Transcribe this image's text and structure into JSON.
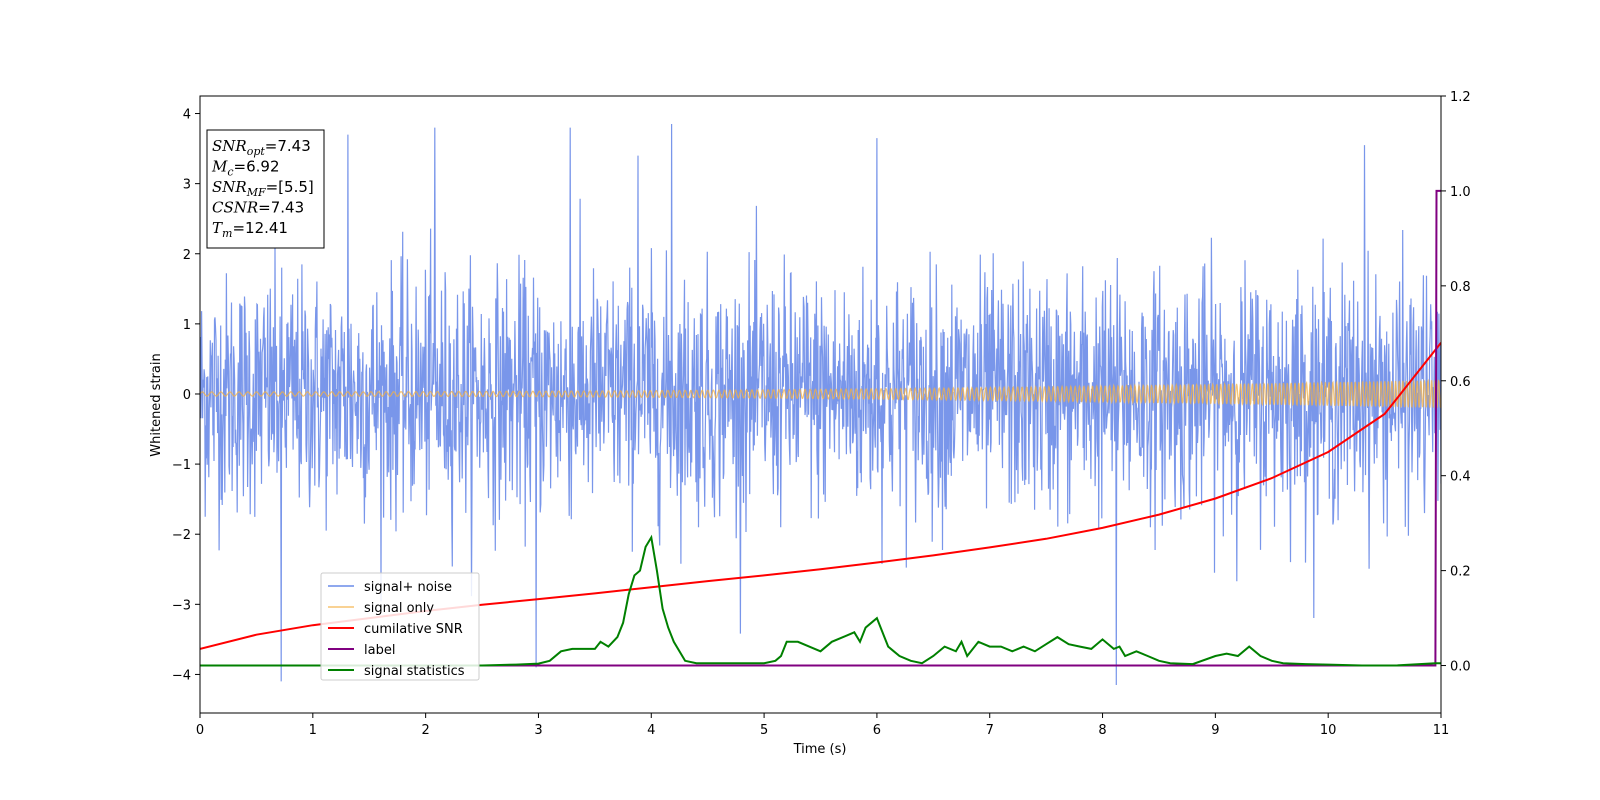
{
  "chart_data": {
    "type": "line",
    "xlabel": "Time (s)",
    "ylabel": "Whitened strain",
    "xlim": [
      0,
      11
    ],
    "ylim_left": [
      -4.55,
      4.25
    ],
    "ylim_right": [
      -0.1,
      1.2
    ],
    "x_ticks": [
      0,
      1,
      2,
      3,
      4,
      5,
      6,
      7,
      8,
      9,
      10,
      11
    ],
    "y_ticks_left": [
      -4,
      -3,
      -2,
      -1,
      0,
      1,
      2,
      3,
      4
    ],
    "y_ticks_right": [
      0.0,
      0.2,
      0.4,
      0.6,
      0.8,
      1.0,
      1.2
    ],
    "y_tick_labels_left": [
      "−4",
      "−3",
      "−2",
      "−1",
      "0",
      "1",
      "2",
      "3",
      "4"
    ],
    "y_tick_labels_right": [
      "0.0",
      "0.2",
      "0.4",
      "0.6",
      "0.8",
      "1.0",
      "1.2"
    ],
    "legend_position": "lower-left",
    "series": [
      {
        "name": "signal+ noise",
        "axis": "left",
        "color": "#6a8be8",
        "description_kind": "noise",
        "noise_std": 0.85,
        "peaks": [
          {
            "x": 0.72,
            "y": -4.1
          },
          {
            "x": 1.31,
            "y": 3.7
          },
          {
            "x": 2.08,
            "y": 3.8
          },
          {
            "x": 2.98,
            "y": -3.9
          },
          {
            "x": 3.28,
            "y": 3.8
          },
          {
            "x": 3.88,
            "y": 3.4
          },
          {
            "x": 4.18,
            "y": 3.85
          },
          {
            "x": 6.0,
            "y": 3.65
          },
          {
            "x": 8.12,
            "y": -4.15
          },
          {
            "x": 10.32,
            "y": 3.55
          }
        ]
      },
      {
        "name": "signal only",
        "axis": "left",
        "color": "#f5b041",
        "description_kind": "chirp",
        "amplitude_start": 0.03,
        "amplitude_end": 0.2
      },
      {
        "name": "cumilative SNR",
        "axis": "right",
        "color": "#ff0000",
        "x": [
          0,
          0.5,
          1,
          1.5,
          2,
          2.5,
          3,
          3.5,
          4,
          4.5,
          5,
          5.5,
          6,
          6.5,
          7,
          7.5,
          8,
          8.5,
          9,
          9.5,
          10,
          10.5,
          11
        ],
        "y": [
          0.035,
          0.065,
          0.085,
          0.1,
          0.115,
          0.128,
          0.14,
          0.152,
          0.165,
          0.178,
          0.19,
          0.203,
          0.217,
          0.232,
          0.249,
          0.267,
          0.29,
          0.318,
          0.352,
          0.395,
          0.45,
          0.53,
          0.68
        ]
      },
      {
        "name": "label",
        "axis": "right",
        "color": "#800080",
        "x": [
          0,
          10.95,
          10.96,
          11.0
        ],
        "y": [
          0,
          0,
          1.0,
          1.0
        ]
      },
      {
        "name": "signal statistics",
        "axis": "right",
        "color": "#008000",
        "x": [
          0,
          0.5,
          1,
          1.5,
          2,
          2.5,
          2.8,
          3.0,
          3.1,
          3.2,
          3.3,
          3.4,
          3.5,
          3.55,
          3.62,
          3.7,
          3.75,
          3.8,
          3.85,
          3.9,
          3.95,
          4.0,
          4.05,
          4.1,
          4.15,
          4.2,
          4.3,
          4.4,
          4.6,
          5.0,
          5.1,
          5.15,
          5.2,
          5.3,
          5.4,
          5.5,
          5.6,
          5.7,
          5.8,
          5.85,
          5.9,
          5.95,
          6.0,
          6.05,
          6.1,
          6.15,
          6.2,
          6.3,
          6.4,
          6.5,
          6.6,
          6.7,
          6.75,
          6.8,
          6.9,
          7.0,
          7.1,
          7.2,
          7.3,
          7.4,
          7.5,
          7.6,
          7.7,
          7.8,
          7.9,
          8.0,
          8.1,
          8.15,
          8.2,
          8.3,
          8.4,
          8.5,
          8.6,
          8.8,
          9.0,
          9.1,
          9.2,
          9.3,
          9.4,
          9.5,
          9.6,
          9.8,
          10.0,
          10.3,
          10.6,
          10.95,
          11.0
        ],
        "y": [
          0.0,
          0.0,
          0.0,
          0.0,
          0.0,
          0.0,
          0.002,
          0.004,
          0.01,
          0.03,
          0.035,
          0.035,
          0.035,
          0.05,
          0.04,
          0.06,
          0.09,
          0.15,
          0.19,
          0.2,
          0.25,
          0.27,
          0.2,
          0.12,
          0.08,
          0.05,
          0.01,
          0.005,
          0.005,
          0.005,
          0.01,
          0.02,
          0.05,
          0.05,
          0.04,
          0.03,
          0.05,
          0.06,
          0.07,
          0.05,
          0.08,
          0.09,
          0.1,
          0.07,
          0.04,
          0.03,
          0.02,
          0.01,
          0.005,
          0.02,
          0.04,
          0.03,
          0.05,
          0.02,
          0.05,
          0.04,
          0.04,
          0.03,
          0.04,
          0.03,
          0.045,
          0.06,
          0.045,
          0.04,
          0.035,
          0.055,
          0.035,
          0.04,
          0.02,
          0.03,
          0.02,
          0.01,
          0.005,
          0.003,
          0.02,
          0.025,
          0.02,
          0.04,
          0.02,
          0.01,
          0.005,
          0.003,
          0.002,
          0.0,
          0.0,
          0.005,
          0.005
        ]
      }
    ],
    "annotation": [
      {
        "name": "SNR",
        "sub": "opt",
        "value": "=7.43"
      },
      {
        "name": "M",
        "sub": "c",
        "value": "=6.92"
      },
      {
        "name": "SNR",
        "sub": "MF",
        "value": "=[5.5]"
      },
      {
        "name": "CSNR",
        "sub": "",
        "value": "=7.43"
      },
      {
        "name": "T",
        "sub": "m",
        "value": "=12.41"
      }
    ]
  }
}
